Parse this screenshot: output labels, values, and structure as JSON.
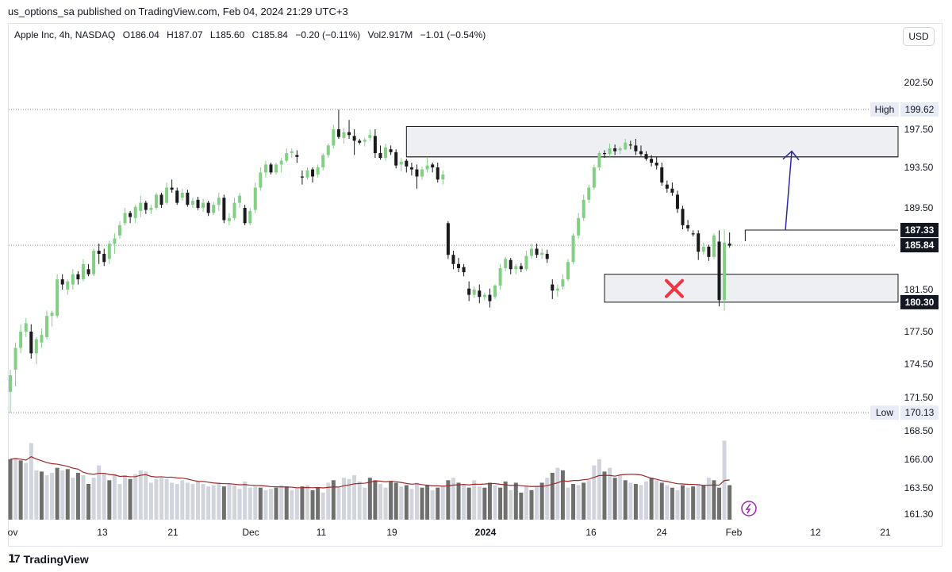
{
  "header": {
    "publisher_line": "us_options_sa published on TradingView.com, Feb 04, 2024 21:29 UTC+3"
  },
  "legend": {
    "symbol": "Apple Inc, 4h, NASDAQ",
    "open": "O186.04",
    "high": "H187.07",
    "low": "L185.60",
    "close": "C185.84",
    "change": "−0.20 (−0.11%)",
    "volume": "Vol2.917M",
    "vol_change": "−1.01 (−0.54%)"
  },
  "currency_button": "USD",
  "footer": {
    "brand": "TradingView"
  },
  "colors": {
    "up": "#83cf86",
    "down": "#1a1a1a",
    "vol_up": "#d1d4dc",
    "vol_down": "#6f6f6f",
    "vol_ma": "#9c2a2a",
    "arrow": "#2a2a9f",
    "cross": "#f23645",
    "zone_fill": "#eeeff3"
  },
  "chart_data": {
    "type": "candlestick",
    "yaxis_ticks": [
      "202.50",
      "197.50",
      "193.50",
      "189.50",
      "181.50",
      "177.50",
      "174.50",
      "171.50",
      "168.50",
      "166.00",
      "163.50",
      "161.30"
    ],
    "xaxis_ticks": [
      "ov",
      "13",
      "21",
      "Dec",
      "11",
      "19",
      "2024",
      "16",
      "24",
      "Feb",
      "12",
      "21"
    ],
    "price_tags": [
      {
        "label": "High",
        "value": "199.62"
      },
      {
        "label": "Low",
        "value": "170.13"
      },
      {
        "label": "",
        "value": "187.33"
      },
      {
        "label": "",
        "value": "185.84"
      },
      {
        "label": "",
        "value": "180.30"
      }
    ],
    "candles": [
      [
        172.0,
        174.0,
        170.1,
        173.5
      ],
      [
        174.0,
        176.5,
        172.5,
        176.0
      ],
      [
        176.0,
        178.2,
        175.5,
        177.5
      ],
      [
        177.5,
        178.8,
        177.0,
        178.3
      ],
      [
        177.5,
        178.2,
        175.0,
        175.5
      ],
      [
        175.5,
        177.0,
        174.5,
        176.8
      ],
      [
        176.5,
        177.8,
        176.0,
        177.2
      ],
      [
        177.0,
        179.5,
        176.8,
        179.0
      ],
      [
        179.0,
        179.5,
        178.0,
        179.3
      ],
      [
        179.0,
        183.0,
        178.8,
        182.5
      ],
      [
        182.5,
        183.0,
        181.5,
        182.0
      ],
      [
        181.5,
        182.5,
        181.0,
        182.3
      ],
      [
        182.0,
        183.5,
        181.5,
        183.0
      ],
      [
        183.0,
        183.3,
        182.0,
        182.5
      ],
      [
        182.5,
        184.5,
        182.3,
        184.0
      ],
      [
        183.5,
        184.0,
        182.8,
        183.0
      ],
      [
        183.0,
        185.5,
        182.8,
        185.3
      ],
      [
        185.3,
        186.0,
        184.0,
        185.0
      ],
      [
        185.0,
        185.5,
        183.8,
        184.2
      ],
      [
        184.5,
        186.3,
        184.0,
        186.0
      ],
      [
        186.0,
        187.0,
        185.0,
        186.5
      ],
      [
        186.8,
        188.2,
        186.5,
        187.8
      ],
      [
        188.0,
        189.5,
        187.8,
        189.0
      ],
      [
        189.0,
        189.2,
        188.0,
        188.6
      ],
      [
        188.5,
        189.8,
        188.0,
        189.6
      ],
      [
        189.2,
        190.7,
        188.6,
        190.0
      ],
      [
        190.0,
        190.2,
        188.9,
        189.3
      ],
      [
        189.3,
        189.8,
        188.9,
        189.5
      ],
      [
        189.5,
        191.0,
        189.3,
        190.8
      ],
      [
        190.8,
        191.0,
        189.5,
        189.8
      ],
      [
        190.0,
        192.0,
        189.8,
        191.5
      ],
      [
        191.5,
        192.3,
        191.0,
        191.3
      ],
      [
        191.2,
        191.5,
        189.8,
        190.0
      ],
      [
        190.5,
        191.4,
        190.2,
        191.0
      ],
      [
        191.0,
        191.3,
        189.6,
        189.8
      ],
      [
        189.8,
        190.5,
        189.5,
        190.2
      ],
      [
        190.3,
        190.6,
        189.3,
        189.5
      ],
      [
        189.5,
        190.4,
        189.1,
        190.0
      ],
      [
        190.0,
        190.2,
        188.7,
        189.0
      ],
      [
        189.0,
        190.1,
        188.8,
        189.8
      ],
      [
        189.8,
        191.0,
        189.2,
        190.5
      ],
      [
        190.5,
        190.8,
        188.0,
        188.3
      ],
      [
        188.2,
        189.0,
        187.8,
        188.5
      ],
      [
        188.5,
        190.5,
        188.3,
        190.0
      ],
      [
        190.0,
        191.0,
        189.5,
        190.7
      ],
      [
        189.5,
        189.8,
        187.8,
        188.0
      ],
      [
        188.0,
        189.5,
        187.8,
        189.2
      ],
      [
        189.3,
        192.0,
        189.0,
        191.5
      ],
      [
        191.5,
        193.5,
        191.2,
        193.0
      ],
      [
        193.0,
        194.2,
        192.5,
        193.8
      ],
      [
        193.8,
        194.0,
        192.8,
        193.0
      ],
      [
        193.0,
        194.0,
        192.8,
        193.8
      ],
      [
        193.8,
        194.5,
        193.0,
        194.2
      ],
      [
        194.2,
        195.5,
        194.0,
        195.0
      ],
      [
        195.0,
        195.5,
        194.5,
        195.2
      ],
      [
        194.8,
        195.3,
        194.0,
        194.6
      ],
      [
        192.6,
        193.2,
        191.8,
        192.5
      ],
      [
        192.5,
        193.5,
        192.3,
        193.2
      ],
      [
        193.3,
        193.5,
        192.0,
        192.6
      ],
      [
        192.8,
        193.8,
        192.5,
        193.5
      ],
      [
        193.5,
        195.0,
        193.2,
        194.8
      ],
      [
        194.8,
        196.0,
        194.5,
        195.8
      ],
      [
        195.8,
        198.0,
        195.5,
        197.5
      ],
      [
        197.5,
        199.6,
        196.5,
        196.7
      ],
      [
        196.6,
        197.6,
        196.0,
        197.2
      ],
      [
        197.2,
        198.5,
        196.5,
        196.9
      ],
      [
        196.8,
        197.5,
        194.8,
        196.3
      ],
      [
        196.3,
        196.5,
        195.9,
        196.1
      ],
      [
        196.2,
        196.6,
        195.7,
        196.4
      ],
      [
        196.6,
        197.5,
        196.3,
        196.9
      ],
      [
        196.8,
        197.5,
        194.5,
        195.0
      ],
      [
        195.0,
        195.8,
        194.3,
        194.5
      ],
      [
        194.5,
        196.0,
        194.2,
        195.6
      ],
      [
        195.4,
        195.8,
        194.8,
        195.1
      ],
      [
        195.1,
        195.4,
        193.4,
        193.7
      ],
      [
        193.8,
        194.5,
        193.1,
        194.1
      ],
      [
        194.2,
        194.4,
        193.0,
        193.6
      ],
      [
        193.5,
        194.0,
        192.7,
        193.3
      ],
      [
        193.3,
        193.8,
        191.4,
        192.6
      ],
      [
        192.6,
        193.6,
        192.3,
        193.3
      ],
      [
        193.3,
        194.5,
        193.0,
        193.7
      ],
      [
        193.8,
        194.0,
        193.0,
        193.5
      ],
      [
        193.5,
        194.0,
        192.0,
        192.3
      ],
      [
        192.3,
        193.2,
        191.8,
        192.8
      ],
      [
        188.0,
        188.2,
        184.5,
        184.9
      ],
      [
        184.9,
        185.3,
        183.5,
        184.0
      ],
      [
        184.0,
        184.6,
        183.2,
        183.6
      ],
      [
        183.7,
        184.0,
        182.8,
        183.2
      ],
      [
        181.6,
        182.3,
        180.4,
        181.0
      ],
      [
        181.0,
        181.8,
        180.7,
        181.5
      ],
      [
        181.4,
        182.0,
        180.2,
        180.8
      ],
      [
        180.8,
        181.2,
        180.5,
        181.0
      ],
      [
        181.0,
        181.6,
        179.8,
        180.4
      ],
      [
        180.8,
        182.0,
        180.6,
        181.9
      ],
      [
        181.9,
        184.0,
        181.5,
        183.6
      ],
      [
        183.6,
        184.7,
        183.3,
        184.5
      ],
      [
        184.4,
        184.6,
        183.0,
        183.5
      ],
      [
        183.5,
        184.0,
        183.0,
        183.8
      ],
      [
        183.8,
        184.1,
        183.2,
        183.5
      ],
      [
        183.5,
        185.3,
        183.3,
        184.8
      ],
      [
        184.8,
        186.0,
        184.5,
        185.5
      ],
      [
        185.5,
        186.0,
        184.6,
        184.9
      ],
      [
        184.9,
        185.5,
        184.5,
        185.1
      ],
      [
        185.0,
        185.4,
        184.1,
        184.5
      ],
      [
        182.0,
        182.5,
        180.6,
        181.4
      ],
      [
        181.4,
        182.0,
        180.8,
        181.6
      ],
      [
        181.8,
        183.0,
        181.5,
        182.5
      ],
      [
        182.5,
        184.5,
        182.3,
        184.2
      ],
      [
        184.2,
        187.0,
        184.0,
        186.8
      ],
      [
        186.8,
        189.0,
        186.5,
        188.5
      ],
      [
        188.5,
        190.8,
        188.2,
        190.3
      ],
      [
        190.3,
        191.8,
        190.0,
        191.5
      ],
      [
        191.5,
        193.8,
        191.3,
        193.5
      ],
      [
        193.5,
        195.2,
        193.2,
        195.0
      ],
      [
        195.0,
        195.3,
        194.5,
        194.9
      ],
      [
        194.9,
        196.0,
        194.6,
        195.5
      ],
      [
        195.5,
        195.9,
        194.8,
        195.2
      ],
      [
        195.3,
        195.7,
        194.9,
        195.5
      ],
      [
        195.4,
        196.5,
        195.3,
        196.1
      ],
      [
        195.9,
        196.3,
        195.4,
        195.8
      ],
      [
        195.8,
        196.5,
        194.8,
        195.2
      ],
      [
        195.2,
        195.8,
        194.7,
        194.9
      ],
      [
        194.9,
        195.2,
        194.2,
        194.4
      ],
      [
        194.4,
        194.8,
        193.6,
        194.0
      ],
      [
        194.0,
        194.6,
        193.3,
        193.7
      ],
      [
        193.5,
        194.0,
        191.7,
        192.0
      ],
      [
        191.8,
        192.2,
        191.0,
        191.4
      ],
      [
        191.4,
        192.0,
        190.7,
        191.0
      ],
      [
        190.8,
        191.2,
        189.0,
        189.4
      ],
      [
        189.4,
        189.7,
        187.4,
        187.8
      ],
      [
        187.8,
        188.3,
        187.2,
        187.5
      ],
      [
        187.0,
        187.3,
        186.7,
        186.9
      ],
      [
        187.0,
        187.3,
        184.4,
        185.2
      ],
      [
        185.2,
        186.1,
        184.9,
        185.7
      ],
      [
        185.7,
        185.9,
        184.3,
        184.7
      ],
      [
        184.7,
        187.0,
        184.5,
        186.8
      ],
      [
        186.2,
        187.3,
        179.9,
        180.5
      ],
      [
        180.5,
        187.4,
        179.5,
        186.1
      ],
      [
        186.0,
        187.1,
        185.6,
        185.8
      ]
    ],
    "volumes": [
      [
        45,
        1
      ],
      [
        46,
        0
      ],
      [
        44,
        1
      ],
      [
        42,
        0
      ],
      [
        58,
        0
      ],
      [
        36,
        0
      ],
      [
        35,
        1
      ],
      [
        32,
        0
      ],
      [
        34,
        0
      ],
      [
        38,
        1
      ],
      [
        36,
        0
      ],
      [
        37,
        1
      ],
      [
        30,
        0
      ],
      [
        34,
        1
      ],
      [
        32,
        0
      ],
      [
        25,
        1
      ],
      [
        30,
        0
      ],
      [
        40,
        0
      ],
      [
        34,
        0
      ],
      [
        28,
        1
      ],
      [
        33,
        0
      ],
      [
        25,
        0
      ],
      [
        32,
        0
      ],
      [
        29,
        1
      ],
      [
        33,
        0
      ],
      [
        36,
        0
      ],
      [
        35,
        0
      ],
      [
        26,
        0
      ],
      [
        29,
        0
      ],
      [
        30,
        0
      ],
      [
        29,
        0
      ],
      [
        26,
        0
      ],
      [
        25,
        0
      ],
      [
        28,
        0
      ],
      [
        26,
        0
      ],
      [
        25,
        0
      ],
      [
        27,
        0
      ],
      [
        25,
        0
      ],
      [
        23,
        0
      ],
      [
        24,
        0
      ],
      [
        26,
        0
      ],
      [
        23,
        1
      ],
      [
        25,
        0
      ],
      [
        24,
        0
      ],
      [
        21,
        0
      ],
      [
        27,
        0
      ],
      [
        22,
        0
      ],
      [
        23,
        0
      ],
      [
        22,
        1
      ],
      [
        20,
        0
      ],
      [
        21,
        0
      ],
      [
        22,
        1
      ],
      [
        24,
        0
      ],
      [
        23,
        1
      ],
      [
        20,
        0
      ],
      [
        22,
        0
      ],
      [
        23,
        1
      ],
      [
        24,
        0
      ],
      [
        20,
        1
      ],
      [
        22,
        1
      ],
      [
        18,
        0
      ],
      [
        26,
        0
      ],
      [
        28,
        1
      ],
      [
        22,
        0
      ],
      [
        30,
        0
      ],
      [
        29,
        0
      ],
      [
        32,
        0
      ],
      [
        27,
        0
      ],
      [
        22,
        0
      ],
      [
        30,
        1
      ],
      [
        28,
        1
      ],
      [
        25,
        0
      ],
      [
        22,
        0
      ],
      [
        27,
        1
      ],
      [
        26,
        1
      ],
      [
        23,
        0
      ],
      [
        24,
        1
      ],
      [
        21,
        0
      ],
      [
        26,
        0
      ],
      [
        22,
        1
      ],
      [
        24,
        1
      ],
      [
        20,
        0
      ],
      [
        22,
        1
      ],
      [
        24,
        0
      ],
      [
        28,
        1
      ],
      [
        30,
        0
      ],
      [
        26,
        1
      ],
      [
        24,
        0
      ],
      [
        22,
        1
      ],
      [
        28,
        0
      ],
      [
        23,
        0
      ],
      [
        22,
        1
      ],
      [
        26,
        1
      ],
      [
        24,
        0
      ],
      [
        22,
        1
      ],
      [
        27,
        1
      ],
      [
        20,
        0
      ],
      [
        26,
        1
      ],
      [
        18,
        1
      ],
      [
        24,
        0
      ],
      [
        20,
        1
      ],
      [
        23,
        0
      ],
      [
        26,
        1
      ],
      [
        30,
        0
      ],
      [
        34,
        1
      ],
      [
        38,
        0
      ],
      [
        36,
        1
      ],
      [
        22,
        0
      ],
      [
        25,
        1
      ],
      [
        24,
        0
      ],
      [
        26,
        1
      ],
      [
        28,
        0
      ],
      [
        40,
        0
      ],
      [
        45,
        0
      ],
      [
        35,
        1
      ],
      [
        38,
        0
      ],
      [
        30,
        1
      ],
      [
        32,
        0
      ],
      [
        28,
        1
      ],
      [
        26,
        0
      ],
      [
        25,
        1
      ],
      [
        24,
        0
      ],
      [
        27,
        0
      ],
      [
        30,
        1
      ],
      [
        28,
        0
      ],
      [
        26,
        1
      ],
      [
        24,
        0
      ],
      [
        22,
        1
      ],
      [
        20,
        0
      ],
      [
        24,
        1
      ],
      [
        22,
        0
      ],
      [
        23,
        1
      ],
      [
        25,
        0
      ],
      [
        24,
        1
      ],
      [
        30,
        0
      ],
      [
        28,
        1
      ],
      [
        22,
        1
      ],
      [
        60,
        0
      ],
      [
        24,
        1
      ]
    ],
    "annotations": [
      {
        "type": "zone",
        "from": 194.6,
        "to": 197.8
      },
      {
        "type": "zone",
        "from": 180.3,
        "to": 183.0
      },
      {
        "type": "level",
        "value": 187.33
      },
      {
        "type": "arrow",
        "from": 187.33,
        "to": 195.2
      },
      {
        "type": "cross"
      }
    ]
  }
}
